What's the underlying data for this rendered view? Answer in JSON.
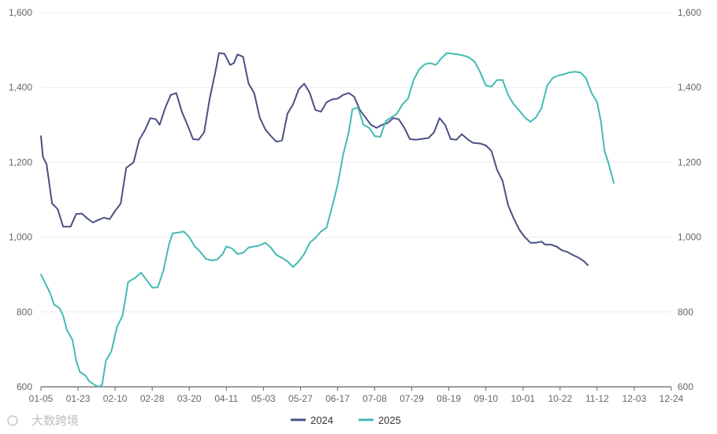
{
  "chart_data": {
    "type": "line",
    "title": "",
    "xlabel": "",
    "ylabel": "",
    "y_left": {
      "min": 600,
      "max": 1600,
      "ticks": [
        600,
        800,
        1000,
        1200,
        1400,
        1600
      ],
      "tick_labels": [
        "600",
        "800",
        "1,000",
        "1,200",
        "1,400",
        "1,600"
      ]
    },
    "y_right": {
      "min": 600,
      "max": 1600,
      "ticks": [
        600,
        800,
        1000,
        1200,
        1400,
        1600
      ],
      "tick_labels": [
        "600",
        "800",
        "1,000",
        "1,200",
        "1,400",
        "1,600"
      ]
    },
    "grid": true,
    "legend": "bottom",
    "x_tick_labels": [
      "01-05",
      "01-23",
      "02-10",
      "02-28",
      "03-20",
      "04-11",
      "05-03",
      "05-27",
      "06-17",
      "07-08",
      "07-29",
      "08-19",
      "09-10",
      "10-01",
      "10-22",
      "11-12",
      "12-03",
      "12-24"
    ],
    "x": [
      "01-05",
      "01-23",
      "02-10",
      "02-28",
      "03-20",
      "04-11",
      "05-03",
      "05-27",
      "06-17",
      "07-08",
      "07-29",
      "08-19",
      "09-10",
      "10-01",
      "10-22",
      "11-12",
      "12-03",
      "12-24"
    ],
    "series": [
      {
        "name": "2024",
        "color": "#4a5085",
        "points": [
          [
            0,
            1270
          ],
          [
            0.05,
            1215
          ],
          [
            0.15,
            1195
          ],
          [
            0.3,
            1090
          ],
          [
            0.45,
            1075
          ],
          [
            0.6,
            1028
          ],
          [
            0.8,
            1028
          ],
          [
            0.95,
            1062
          ],
          [
            1.1,
            1063
          ],
          [
            1.25,
            1050
          ],
          [
            1.4,
            1039
          ],
          [
            1.55,
            1046
          ],
          [
            1.7,
            1052
          ],
          [
            1.85,
            1048
          ],
          [
            2.0,
            1070
          ],
          [
            2.15,
            1090
          ],
          [
            2.3,
            1185
          ],
          [
            2.5,
            1200
          ],
          [
            2.65,
            1260
          ],
          [
            2.8,
            1285
          ],
          [
            2.95,
            1318
          ],
          [
            3.1,
            1315
          ],
          [
            3.2,
            1300
          ],
          [
            3.35,
            1345
          ],
          [
            3.5,
            1380
          ],
          [
            3.65,
            1385
          ],
          [
            3.8,
            1335
          ],
          [
            3.95,
            1300
          ],
          [
            4.1,
            1262
          ],
          [
            4.25,
            1260
          ],
          [
            4.4,
            1280
          ],
          [
            4.55,
            1370
          ],
          [
            4.7,
            1440
          ],
          [
            4.8,
            1492
          ],
          [
            4.95,
            1490
          ],
          [
            5.1,
            1460
          ],
          [
            5.2,
            1465
          ],
          [
            5.3,
            1488
          ],
          [
            5.45,
            1482
          ],
          [
            5.6,
            1410
          ],
          [
            5.75,
            1385
          ],
          [
            5.9,
            1320
          ],
          [
            6.05,
            1288
          ],
          [
            6.2,
            1270
          ],
          [
            6.35,
            1255
          ],
          [
            6.5,
            1258
          ],
          [
            6.65,
            1330
          ],
          [
            6.8,
            1355
          ],
          [
            6.95,
            1395
          ],
          [
            7.1,
            1410
          ],
          [
            7.25,
            1385
          ],
          [
            7.4,
            1340
          ],
          [
            7.55,
            1335
          ],
          [
            7.7,
            1360
          ],
          [
            7.85,
            1368
          ],
          [
            8.0,
            1370
          ],
          [
            8.15,
            1380
          ],
          [
            8.3,
            1385
          ],
          [
            8.45,
            1375
          ],
          [
            8.6,
            1340
          ],
          [
            8.75,
            1320
          ],
          [
            8.9,
            1300
          ],
          [
            9.05,
            1292
          ],
          [
            9.2,
            1300
          ],
          [
            9.35,
            1305
          ],
          [
            9.5,
            1318
          ],
          [
            9.65,
            1315
          ],
          [
            9.8,
            1292
          ],
          [
            9.95,
            1262
          ],
          [
            10.1,
            1260
          ],
          [
            10.25,
            1262
          ],
          [
            10.45,
            1265
          ],
          [
            10.6,
            1280
          ],
          [
            10.75,
            1318
          ],
          [
            10.9,
            1300
          ],
          [
            11.05,
            1262
          ],
          [
            11.2,
            1260
          ],
          [
            11.35,
            1275
          ],
          [
            11.5,
            1262
          ],
          [
            11.65,
            1252
          ],
          [
            11.85,
            1250
          ],
          [
            12.0,
            1245
          ],
          [
            12.15,
            1230
          ],
          [
            12.3,
            1180
          ],
          [
            12.45,
            1150
          ],
          [
            12.6,
            1085
          ],
          [
            12.75,
            1050
          ],
          [
            12.9,
            1020
          ],
          [
            13.05,
            1000
          ],
          [
            13.2,
            985
          ],
          [
            13.35,
            985
          ],
          [
            13.5,
            988
          ],
          [
            13.6,
            980
          ],
          [
            13.75,
            980
          ],
          [
            13.9,
            975
          ],
          [
            14.05,
            965
          ],
          [
            14.2,
            960
          ],
          [
            14.35,
            952
          ],
          [
            14.5,
            945
          ],
          [
            14.65,
            935
          ],
          [
            14.75,
            925
          ]
        ]
      },
      {
        "name": "2025",
        "color": "#43bbb3",
        "points": [
          [
            0,
            900
          ],
          [
            0.1,
            880
          ],
          [
            0.25,
            850
          ],
          [
            0.35,
            820
          ],
          [
            0.5,
            810
          ],
          [
            0.6,
            790
          ],
          [
            0.7,
            752
          ],
          [
            0.85,
            725
          ],
          [
            0.95,
            670
          ],
          [
            1.05,
            640
          ],
          [
            1.2,
            630
          ],
          [
            1.3,
            615
          ],
          [
            1.45,
            605
          ],
          [
            1.55,
            600
          ],
          [
            1.65,
            605
          ],
          [
            1.75,
            670
          ],
          [
            1.9,
            695
          ],
          [
            2.05,
            760
          ],
          [
            2.2,
            790
          ],
          [
            2.35,
            880
          ],
          [
            2.55,
            892
          ],
          [
            2.7,
            905
          ],
          [
            2.85,
            885
          ],
          [
            3.0,
            865
          ],
          [
            3.15,
            866
          ],
          [
            3.3,
            910
          ],
          [
            3.45,
            980
          ],
          [
            3.55,
            1010
          ],
          [
            3.7,
            1012
          ],
          [
            3.85,
            1015
          ],
          [
            4.0,
            1000
          ],
          [
            4.15,
            975
          ],
          [
            4.3,
            960
          ],
          [
            4.45,
            942
          ],
          [
            4.6,
            938
          ],
          [
            4.75,
            940
          ],
          [
            4.9,
            955
          ],
          [
            5.0,
            975
          ],
          [
            5.15,
            970
          ],
          [
            5.3,
            955
          ],
          [
            5.45,
            958
          ],
          [
            5.6,
            972
          ],
          [
            5.75,
            975
          ],
          [
            5.9,
            978
          ],
          [
            6.05,
            985
          ],
          [
            6.2,
            972
          ],
          [
            6.35,
            952
          ],
          [
            6.5,
            945
          ],
          [
            6.65,
            935
          ],
          [
            6.8,
            920
          ],
          [
            6.95,
            935
          ],
          [
            7.1,
            955
          ],
          [
            7.25,
            985
          ],
          [
            7.4,
            998
          ],
          [
            7.55,
            1015
          ],
          [
            7.7,
            1025
          ],
          [
            7.85,
            1080
          ],
          [
            8.0,
            1140
          ],
          [
            8.15,
            1220
          ],
          [
            8.3,
            1280
          ],
          [
            8.4,
            1342
          ],
          [
            8.55,
            1346
          ],
          [
            8.7,
            1300
          ],
          [
            8.85,
            1292
          ],
          [
            9.0,
            1270
          ],
          [
            9.15,
            1268
          ],
          [
            9.3,
            1310
          ],
          [
            9.45,
            1320
          ],
          [
            9.6,
            1330
          ],
          [
            9.75,
            1355
          ],
          [
            9.9,
            1370
          ],
          [
            10.05,
            1420
          ],
          [
            10.2,
            1448
          ],
          [
            10.35,
            1462
          ],
          [
            10.5,
            1465
          ],
          [
            10.65,
            1460
          ],
          [
            10.8,
            1478
          ],
          [
            10.95,
            1492
          ],
          [
            11.1,
            1490
          ],
          [
            11.25,
            1488
          ],
          [
            11.4,
            1485
          ],
          [
            11.55,
            1480
          ],
          [
            11.7,
            1468
          ],
          [
            11.85,
            1440
          ],
          [
            12.0,
            1405
          ],
          [
            12.15,
            1402
          ],
          [
            12.3,
            1420
          ],
          [
            12.45,
            1420
          ],
          [
            12.6,
            1380
          ],
          [
            12.75,
            1355
          ],
          [
            12.9,
            1338
          ],
          [
            13.05,
            1320
          ],
          [
            13.2,
            1308
          ],
          [
            13.35,
            1320
          ],
          [
            13.5,
            1345
          ],
          [
            13.65,
            1405
          ],
          [
            13.8,
            1425
          ],
          [
            13.95,
            1432
          ],
          [
            14.1,
            1435
          ],
          [
            14.25,
            1440
          ],
          [
            14.4,
            1442
          ],
          [
            14.55,
            1440
          ],
          [
            14.7,
            1425
          ],
          [
            14.85,
            1385
          ],
          [
            15.0,
            1360
          ],
          [
            15.1,
            1310
          ],
          [
            15.2,
            1230
          ],
          [
            15.3,
            1200
          ],
          [
            15.38,
            1170
          ],
          [
            15.45,
            1145
          ]
        ]
      }
    ]
  },
  "legend": {
    "items": [
      "2024",
      "2025"
    ]
  },
  "watermark": {
    "text": "大数跨境"
  }
}
